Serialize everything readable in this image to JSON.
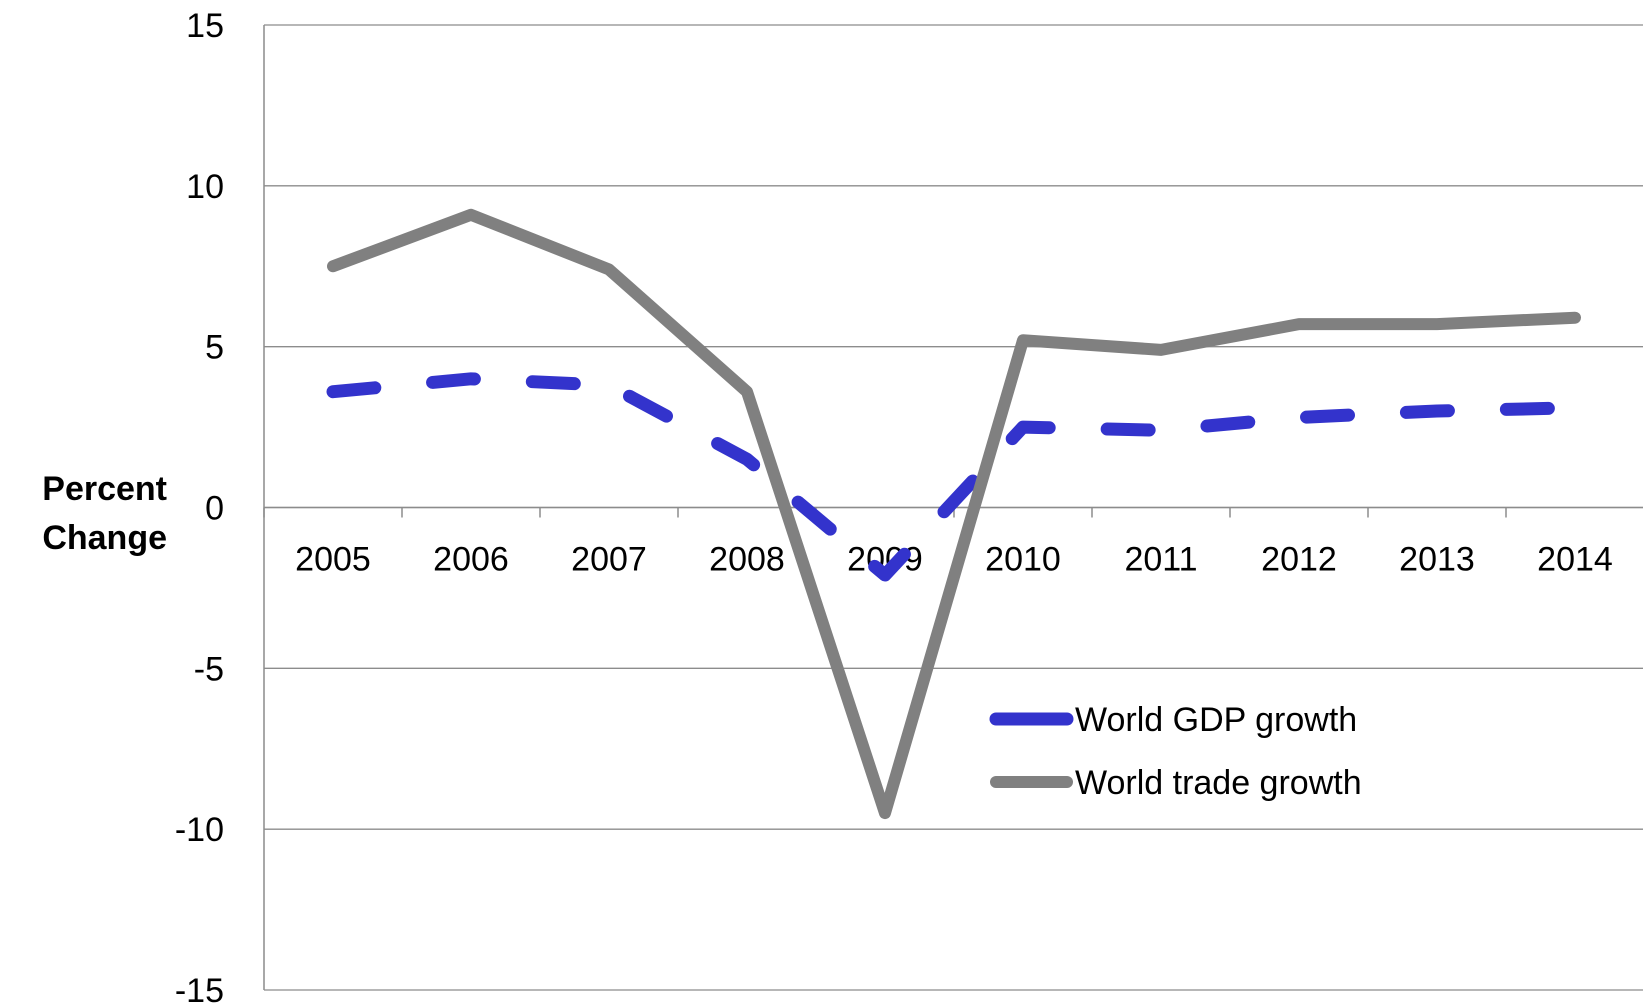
{
  "chart_data": {
    "type": "line",
    "title": "",
    "xlabel": "",
    "ylabel": [
      "Percent",
      "Change"
    ],
    "categories": [
      "2005",
      "2006",
      "2007",
      "2008",
      "2009",
      "2010",
      "2011",
      "2012",
      "2013",
      "2014"
    ],
    "ylim": [
      -15,
      15
    ],
    "yticks": [
      15,
      10,
      5,
      0,
      -5,
      -10,
      -15
    ],
    "grid": true,
    "legend_position": "lower-right",
    "series": [
      {
        "name": "World GDP growth",
        "values": [
          3.6,
          4.0,
          3.8,
          1.5,
          -2.1,
          2.5,
          2.4,
          2.8,
          3.0,
          3.1
        ],
        "color": "#3333cc",
        "style": "dashed"
      },
      {
        "name": "World trade growth",
        "values": [
          7.5,
          9.1,
          7.4,
          3.6,
          -9.5,
          5.2,
          4.9,
          5.7,
          5.7,
          5.9
        ],
        "color": "#808080",
        "style": "solid"
      }
    ]
  }
}
